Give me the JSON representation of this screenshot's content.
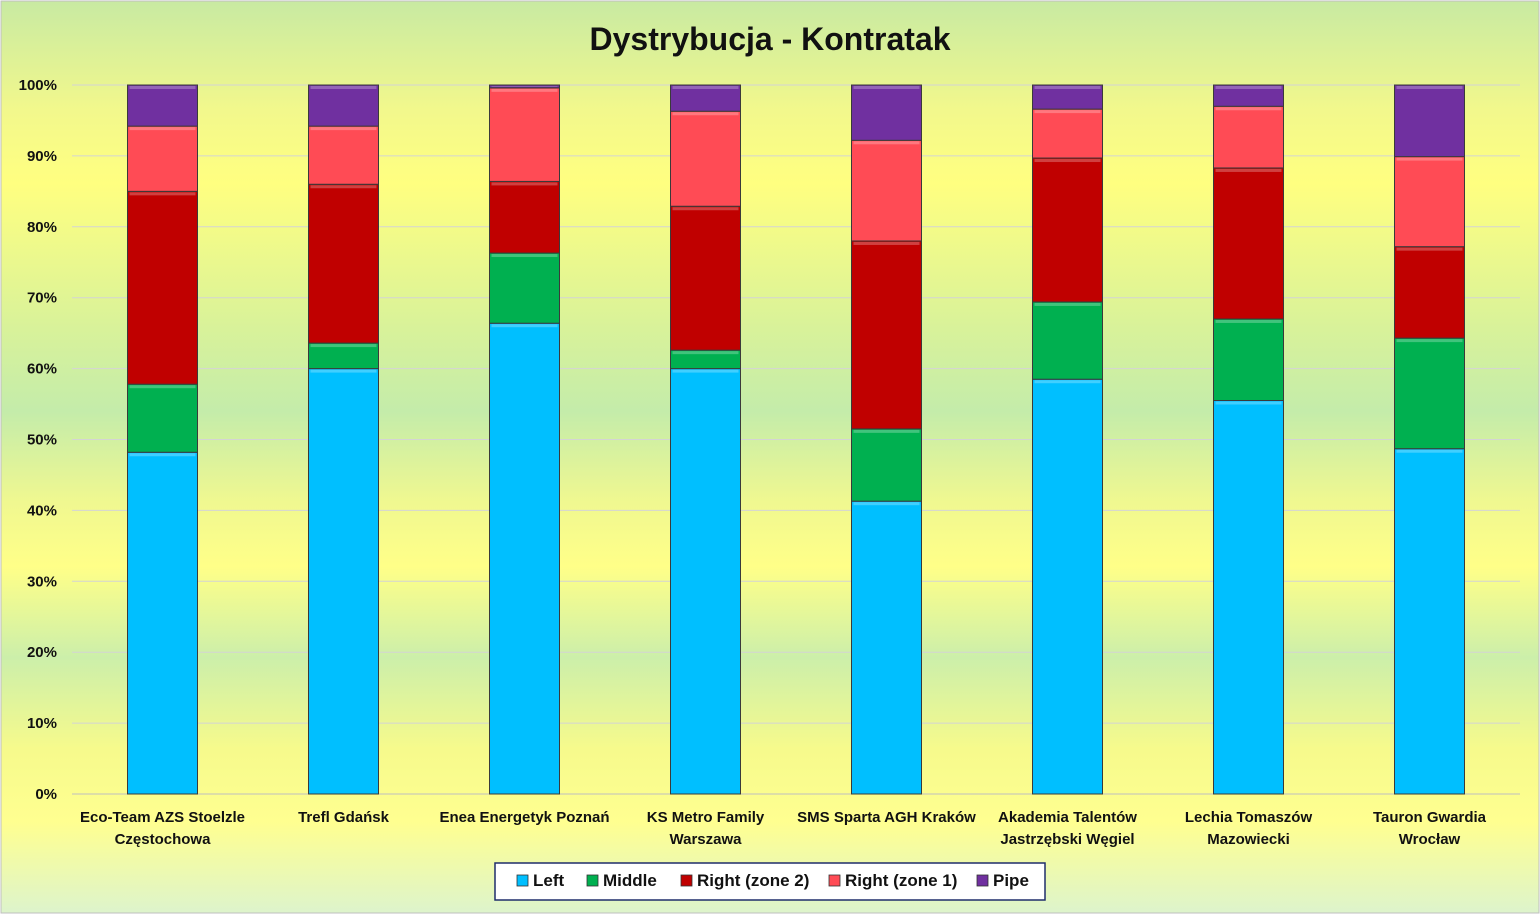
{
  "chart_data": {
    "type": "bar",
    "stacked": true,
    "percent": true,
    "title": "Dystrybucja - Kontratak",
    "xlabel": "",
    "ylabel": "",
    "ylim": [
      0,
      100
    ],
    "y_ticks": [
      "0%",
      "10%",
      "20%",
      "30%",
      "40%",
      "50%",
      "60%",
      "70%",
      "80%",
      "90%",
      "100%"
    ],
    "grid": true,
    "legend_position": "bottom",
    "categories": [
      [
        "Eco-Team AZS Stoelzle",
        "Częstochowa"
      ],
      [
        "Trefl Gdańsk"
      ],
      [
        "Enea Energetyk Poznań"
      ],
      [
        "KS Metro Family",
        "Warszawa"
      ],
      [
        "SMS Sparta AGH Kraków"
      ],
      [
        "Akademia Talentów",
        "Jastrzębski Węgiel"
      ],
      [
        "Lechia Tomaszów",
        "Mazowiecki"
      ],
      [
        "Tauron Gwardia",
        "Wrocław"
      ]
    ],
    "series": [
      {
        "name": "Left",
        "color": "#00BFFF",
        "values": [
          48.2,
          60.0,
          66.4,
          60.0,
          41.3,
          58.5,
          55.5,
          48.7
        ]
      },
      {
        "name": "Middle",
        "color": "#00B050",
        "values": [
          9.6,
          3.6,
          9.9,
          2.6,
          10.2,
          10.9,
          11.5,
          15.6
        ]
      },
      {
        "name": "Right (zone 2)",
        "color": "#C00000",
        "values": [
          27.2,
          22.4,
          10.1,
          20.3,
          26.5,
          20.3,
          21.3,
          12.9
        ]
      },
      {
        "name": "Right (zone 1)",
        "color": "#FF4B55",
        "values": [
          9.2,
          8.2,
          13.2,
          13.4,
          14.2,
          6.9,
          8.7,
          12.7
        ]
      },
      {
        "name": "Pipe",
        "color": "#7030A0",
        "values": [
          5.8,
          5.8,
          0.4,
          3.7,
          7.8,
          3.4,
          3.0,
          10.1
        ]
      }
    ]
  }
}
